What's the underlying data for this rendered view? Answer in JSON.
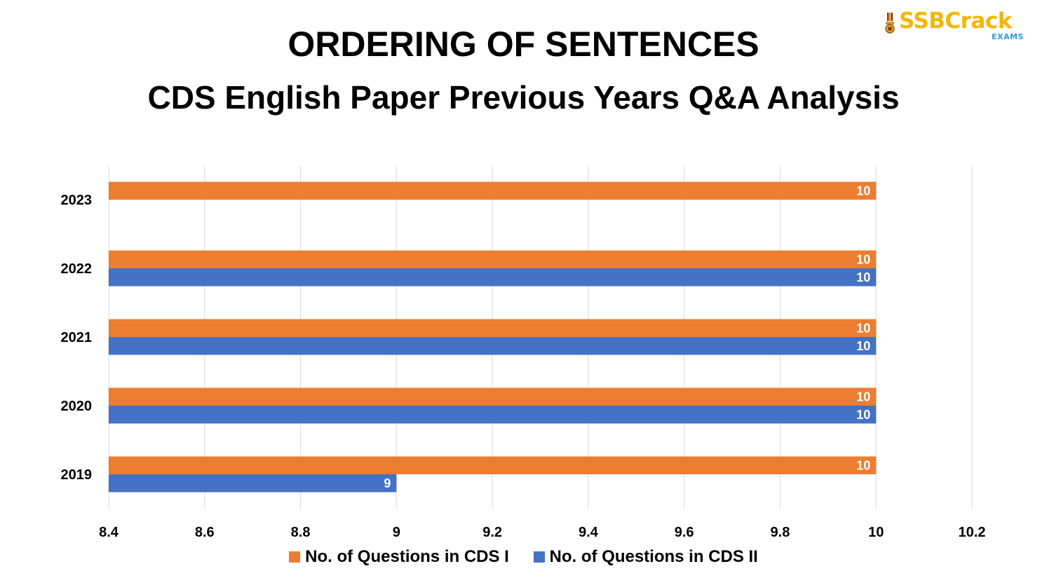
{
  "header": {
    "title": "ORDERING OF SENTENCES",
    "subtitle": "CDS English Paper Previous Years Q&A Analysis"
  },
  "logo": {
    "brand": "SSBCrack",
    "tagline": "EXAMS",
    "icon": "medal-icon",
    "color": "#f2b705",
    "tagline_color": "#2f9be0"
  },
  "chart_data": {
    "type": "bar",
    "orientation": "horizontal",
    "categories": [
      "2023",
      "2022",
      "2021",
      "2020",
      "2019"
    ],
    "series": [
      {
        "name": "No. of Questions in CDS I",
        "color": "#ed7d31",
        "values": [
          10,
          10,
          10,
          10,
          10
        ]
      },
      {
        "name": "No. of Questions in CDS II",
        "color": "#4472c4",
        "values": [
          null,
          10,
          10,
          10,
          9
        ]
      }
    ],
    "xlim": [
      8.4,
      10.2
    ],
    "xticks": [
      "8.4",
      "8.6",
      "8.8",
      "9",
      "9.2",
      "9.4",
      "9.6",
      "9.8",
      "10",
      "10.2"
    ],
    "grid": true,
    "legend_position": "bottom",
    "data_labels": true,
    "title": "ORDERING OF SENTENCES",
    "subtitle": "CDS English Paper Previous Years Q&A Analysis"
  }
}
